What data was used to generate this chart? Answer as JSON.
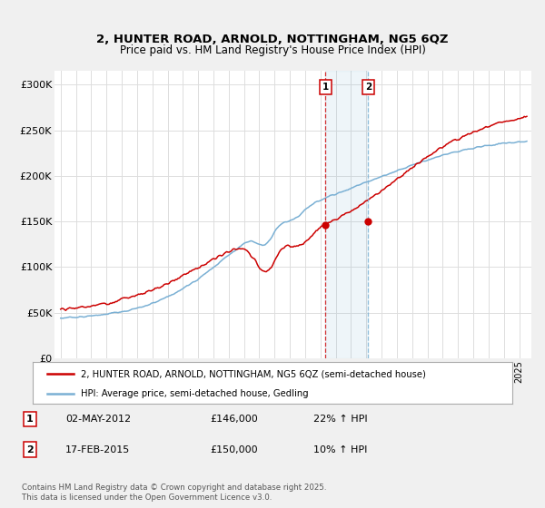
{
  "title": "2, HUNTER ROAD, ARNOLD, NOTTINGHAM, NG5 6QZ",
  "subtitle": "Price paid vs. HM Land Registry's House Price Index (HPI)",
  "ylabel_ticks": [
    "£0",
    "£50K",
    "£100K",
    "£150K",
    "£200K",
    "£250K",
    "£300K"
  ],
  "ytick_values": [
    0,
    50000,
    100000,
    150000,
    200000,
    250000,
    300000
  ],
  "ylim": [
    0,
    315000
  ],
  "red_line_color": "#cc0000",
  "blue_line_color": "#7ab0d4",
  "vline1_color": "#cc0000",
  "vline2_color": "#7ab0d4",
  "marker1_date": 2012.33,
  "marker2_date": 2015.12,
  "marker1_price": 146000,
  "marker2_price": 150000,
  "legend1": "2, HUNTER ROAD, ARNOLD, NOTTINGHAM, NG5 6QZ (semi-detached house)",
  "legend2": "HPI: Average price, semi-detached house, Gedling",
  "annotation1_date": "02-MAY-2012",
  "annotation1_price": "£146,000",
  "annotation1_hpi": "22% ↑ HPI",
  "annotation2_date": "17-FEB-2015",
  "annotation2_price": "£150,000",
  "annotation2_hpi": "10% ↑ HPI",
  "footer": "Contains HM Land Registry data © Crown copyright and database right 2025.\nThis data is licensed under the Open Government Licence v3.0.",
  "background_color": "#f0f0f0",
  "plot_bg_color": "#ffffff",
  "grid_color": "#dddddd"
}
